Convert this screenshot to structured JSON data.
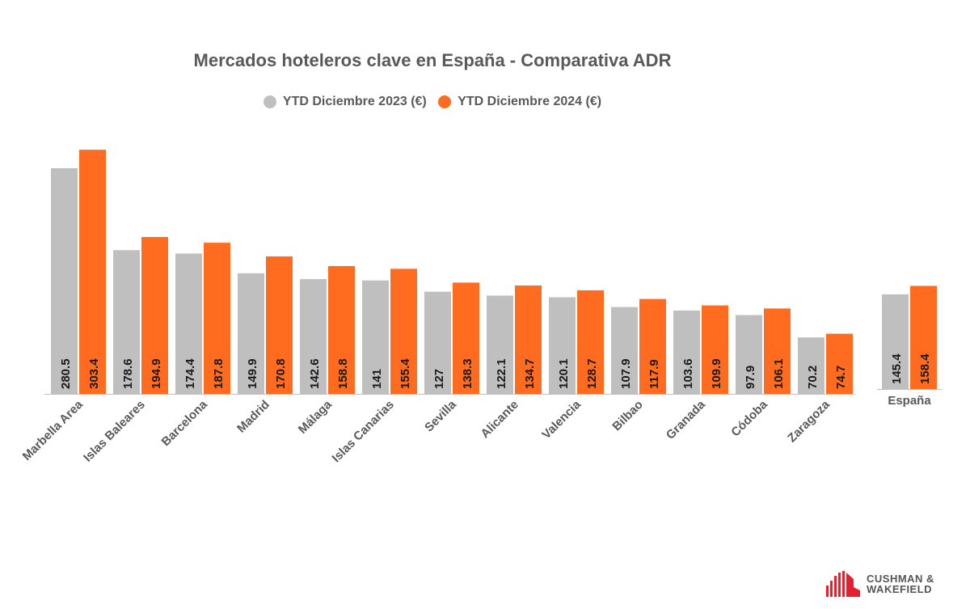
{
  "chart_data": {
    "type": "bar",
    "title": "Mercados hoteleros clave en España - Comparativa ADR",
    "categories": [
      "Marbella Area",
      "Islas Baleares",
      "Barcelona",
      "Madrid",
      "Málaga",
      "Islas Canarias",
      "Sevilla",
      "Alicante",
      "Valencia",
      "Bilbao",
      "Granada",
      "Códoba",
      "Zaragoza"
    ],
    "series": [
      {
        "name": "YTD Diciembre 2023 (€)",
        "color": "#bfbfbf",
        "values": [
          280.5,
          178.6,
          174.4,
          149.9,
          142.6,
          141,
          127,
          122.1,
          120.1,
          107.9,
          103.6,
          97.9,
          70.2
        ]
      },
      {
        "name": "YTD Diciembre 2024 (€)",
        "color": "#ff6b1f",
        "values": [
          303.4,
          194.9,
          187.8,
          170.8,
          158.8,
          155.4,
          138.3,
          134.7,
          128.7,
          117.9,
          109.9,
          106.1,
          74.7
        ]
      }
    ],
    "summary": {
      "category": "España",
      "values": [
        145.4,
        158.4
      ]
    },
    "data_labels": true,
    "grid": false,
    "legend_position": "top"
  },
  "logo": {
    "line1": "CUSHMAN &",
    "line2": "WAKEFIELD"
  }
}
